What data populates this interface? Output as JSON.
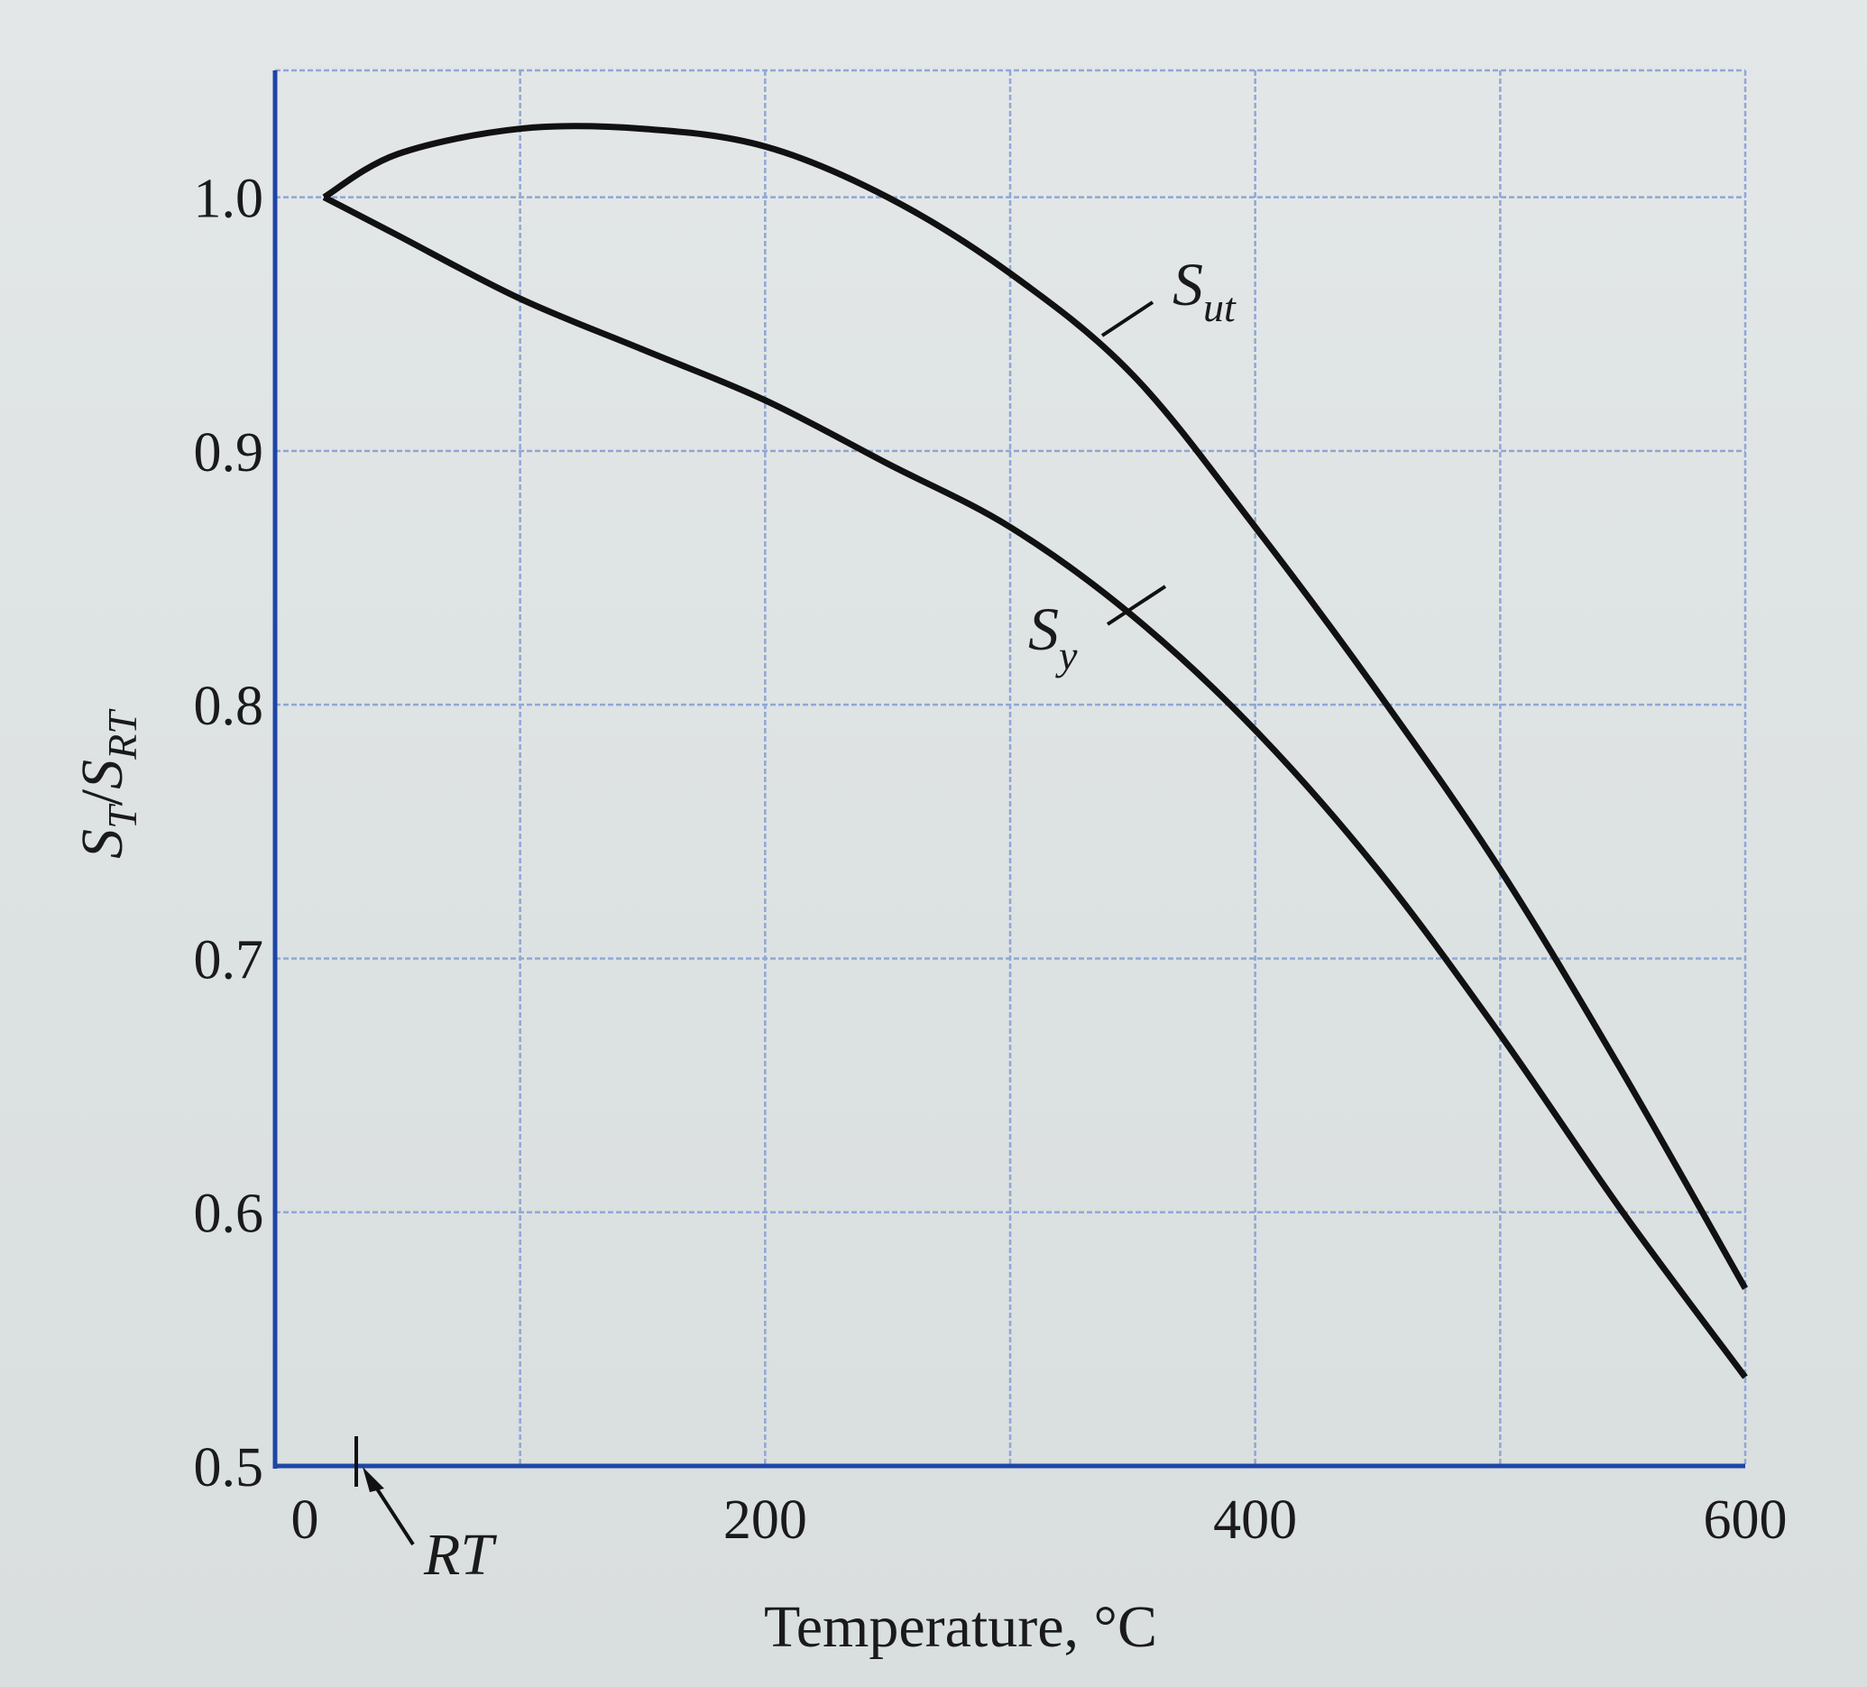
{
  "chart_data": {
    "type": "line",
    "xlabel": "Temperature, °C",
    "ylabel": {
      "base": "S",
      "sub_num": "T",
      "sep": "/",
      "base2": "S",
      "sub_den": "RT"
    },
    "xlim": [
      0,
      600
    ],
    "ylim": [
      0.5,
      1.05
    ],
    "xticks": [
      "0",
      "200",
      "400",
      "600"
    ],
    "xtick_values": [
      0,
      200,
      400,
      600
    ],
    "yticks": [
      "0.5",
      "0.6",
      "0.7",
      "0.8",
      "0.9",
      "1.0"
    ],
    "ytick_values": [
      0.5,
      0.6,
      0.7,
      0.8,
      0.9,
      1.0
    ],
    "grid_x": [
      0,
      100,
      200,
      300,
      400,
      500,
      600
    ],
    "grid_y": [
      0.5,
      0.6,
      0.7,
      0.8,
      0.9,
      1.0,
      1.05
    ],
    "grid": true,
    "annotation": {
      "text": "RT",
      "x": 20
    },
    "series": [
      {
        "name": "S_ut",
        "label_base": "S",
        "label_sub": "ut",
        "x": [
          20,
          50,
          100,
          150,
          200,
          250,
          300,
          350,
          400,
          450,
          500,
          550,
          600
        ],
        "y": [
          1.0,
          1.017,
          1.027,
          1.027,
          1.02,
          1.0,
          0.97,
          0.93,
          0.87,
          0.805,
          0.735,
          0.655,
          0.57
        ]
      },
      {
        "name": "S_y",
        "label_base": "S",
        "label_sub": "y",
        "x": [
          20,
          50,
          100,
          150,
          200,
          250,
          300,
          350,
          400,
          450,
          500,
          550,
          600
        ],
        "y": [
          1.0,
          0.985,
          0.96,
          0.94,
          0.92,
          0.895,
          0.87,
          0.835,
          0.79,
          0.735,
          0.67,
          0.6,
          0.535
        ]
      }
    ]
  }
}
